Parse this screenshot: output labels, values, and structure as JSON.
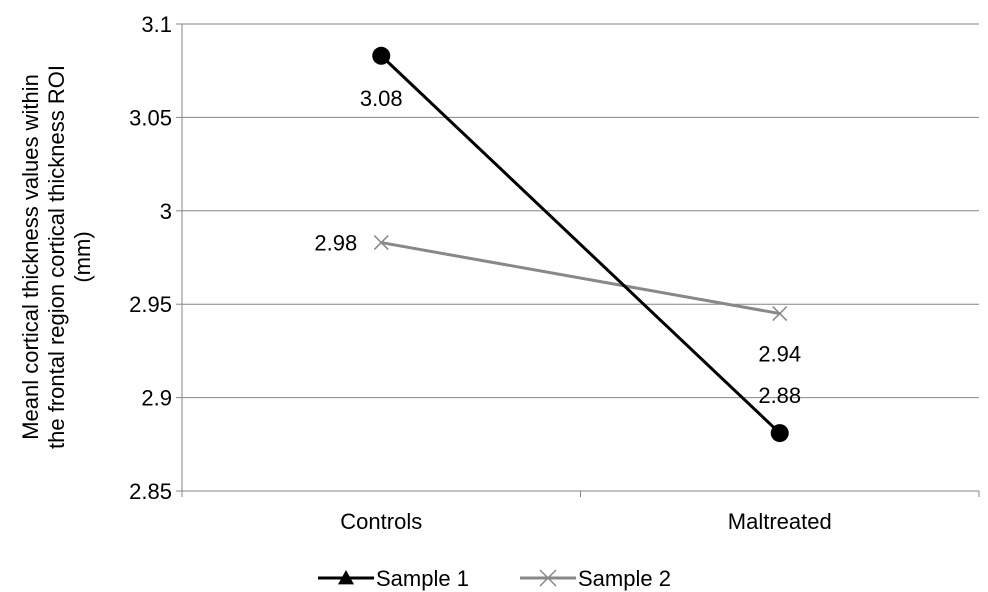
{
  "chart_data": {
    "type": "line",
    "title": "",
    "xlabel": "",
    "ylabel_lines": [
      "Meanl cortical thickness values within",
      "the frontal region cortical thickness ROI",
      "(mm)"
    ],
    "categories": [
      "Controls",
      "Maltreated"
    ],
    "ylim": [
      2.85,
      3.1
    ],
    "yticks": [
      2.85,
      2.9,
      2.95,
      3,
      3.05,
      3.1
    ],
    "ytick_labels": [
      "2.85",
      "2.9",
      "2.95",
      "3",
      "3.05",
      "3.1"
    ],
    "grid": true,
    "legend_position": "bottom",
    "series": [
      {
        "name": "Sample 1",
        "values": [
          3.083,
          2.881
        ],
        "labels": [
          "3.08",
          "2.88"
        ],
        "color": "#000000",
        "marker": "circle",
        "legend_marker": "triangle"
      },
      {
        "name": "Sample 2",
        "values": [
          2.983,
          2.945
        ],
        "labels": [
          "2.98",
          "2.94"
        ],
        "color": "#888888",
        "marker": "x",
        "legend_marker": "x"
      }
    ]
  }
}
